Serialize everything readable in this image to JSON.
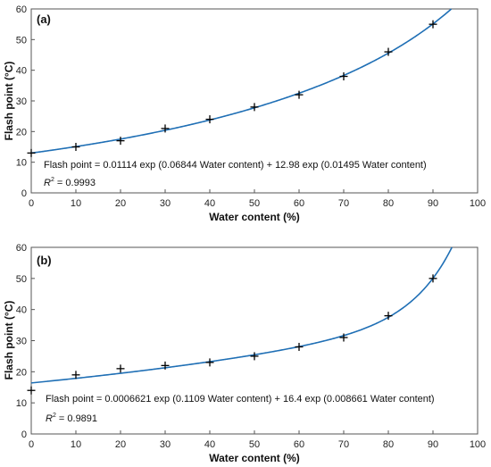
{
  "chart_data": [
    {
      "type": "scatter",
      "panel_label": "(a)",
      "xlabel": "Water content (%)",
      "ylabel": "Flash point (°C)",
      "xlim": [
        0,
        100
      ],
      "ylim": [
        0,
        60
      ],
      "xticks": [
        0,
        10,
        20,
        30,
        40,
        50,
        60,
        70,
        80,
        90,
        100
      ],
      "yticks": [
        0,
        10,
        20,
        30,
        40,
        50,
        60
      ],
      "grid": false,
      "series": [
        {
          "points": [
            {
              "x": 0,
              "y": 13
            },
            {
              "x": 10,
              "y": 15
            },
            {
              "x": 20,
              "y": 17
            },
            {
              "x": 30,
              "y": 21
            },
            {
              "x": 40,
              "y": 24
            },
            {
              "x": 50,
              "y": 28
            },
            {
              "x": 60,
              "y": 32
            },
            {
              "x": 70,
              "y": 38
            },
            {
              "x": 80,
              "y": 46
            },
            {
              "x": 90,
              "y": 55
            }
          ],
          "marker": "+",
          "color": "#000000"
        }
      ],
      "fit": {
        "color": "#1f6fb5",
        "a": 0.01114,
        "b": 0.06844,
        "c": 12.98,
        "d": 0.01495
      },
      "equation": "Flash point = 0.01114 exp (0.06844 Water content) + 12.98 exp (0.01495 Water content)",
      "r2_label": "R",
      "r2_exp": "2",
      "r2_value": " = 0.9993"
    },
    {
      "type": "scatter",
      "panel_label": "(b)",
      "xlabel": "Water content (%)",
      "ylabel": "Flash point (°C)",
      "xlim": [
        0,
        100
      ],
      "ylim": [
        0,
        60
      ],
      "xticks": [
        0,
        10,
        20,
        30,
        40,
        50,
        60,
        70,
        80,
        90,
        100
      ],
      "yticks": [
        0,
        10,
        20,
        30,
        40,
        50,
        60
      ],
      "grid": false,
      "series": [
        {
          "points": [
            {
              "x": 0,
              "y": 14
            },
            {
              "x": 10,
              "y": 19
            },
            {
              "x": 20,
              "y": 21
            },
            {
              "x": 30,
              "y": 22
            },
            {
              "x": 40,
              "y": 23
            },
            {
              "x": 50,
              "y": 25
            },
            {
              "x": 60,
              "y": 28
            },
            {
              "x": 70,
              "y": 31
            },
            {
              "x": 80,
              "y": 38
            },
            {
              "x": 90,
              "y": 50
            }
          ],
          "marker": "+",
          "color": "#000000"
        }
      ],
      "fit": {
        "color": "#1f6fb5",
        "a": 0.0006621,
        "b": 0.1109,
        "c": 16.4,
        "d": 0.008661
      },
      "equation": "Flash point = 0.0006621 exp (0.1109 Water content) + 16.4 exp (0.008661 Water content)",
      "r2_label": "R",
      "r2_exp": "2",
      "r2_value": " = 0.9891"
    }
  ]
}
